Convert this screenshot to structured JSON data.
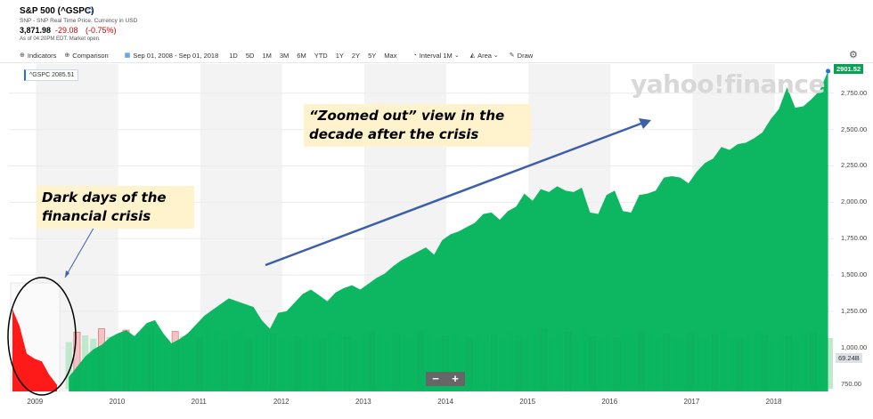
{
  "header": {
    "title": "S&P 500 (^GSPC)",
    "subtitle": "SNP - SNP Real Time Price. Currency in USD",
    "price": "3,871.98",
    "change": "-29.08",
    "change_pct": "(-0.75%)",
    "as_of": "As of 04:20PM EDT. Market open."
  },
  "toolbar": {
    "indicators": "Indicators",
    "comparison": "Comparison",
    "date_range": "Sep 01, 2008 - Sep 01, 2018",
    "ranges": [
      "1D",
      "5D",
      "1M",
      "3M",
      "6M",
      "YTD",
      "1Y",
      "2Y",
      "5Y",
      "Max"
    ],
    "interval": "Interval",
    "interval_value": "1M",
    "chart_type": "Area",
    "draw": "Draw"
  },
  "colors": {
    "area": "#00b35a",
    "crisis": "#ff1a1a",
    "arrow": "#3b5fa8",
    "note_bg": "#fff3cd",
    "neg_change": "#d60000"
  },
  "chart_data": {
    "type": "area",
    "x": [
      2009.4,
      2009.5,
      2009.6,
      2009.7,
      2009.8,
      2009.9,
      2010.0,
      2010.1,
      2010.2,
      2010.3,
      2010.35,
      2010.45,
      2010.55,
      2010.65,
      2010.75,
      2010.85,
      2010.95,
      2011.05,
      2011.15,
      2011.25,
      2011.35,
      2011.45,
      2011.55,
      2011.65,
      2011.75,
      2011.85,
      2011.95,
      2012.05,
      2012.15,
      2012.25,
      2012.35,
      2012.45,
      2012.55,
      2012.65,
      2012.75,
      2012.85,
      2012.95,
      2013.05,
      2013.15,
      2013.25,
      2013.35,
      2013.45,
      2013.55,
      2013.65,
      2013.75,
      2013.85,
      2013.95,
      2014.05,
      2014.15,
      2014.25,
      2014.35,
      2014.45,
      2014.55,
      2014.65,
      2014.75,
      2014.85,
      2014.95,
      2015.05,
      2015.15,
      2015.25,
      2015.35,
      2015.45,
      2015.55,
      2015.65,
      2015.75,
      2015.85,
      2015.95,
      2016.05,
      2016.15,
      2016.25,
      2016.35,
      2016.45,
      2016.55,
      2016.65,
      2016.75,
      2016.85,
      2016.95,
      2017.05,
      2017.15,
      2017.25,
      2017.35,
      2017.45,
      2017.55,
      2017.65,
      2017.75,
      2017.85,
      2017.95,
      2018.05,
      2018.15,
      2018.25,
      2018.35,
      2018.45,
      2018.55,
      2018.65
    ],
    "y": [
      800,
      870,
      940,
      990,
      1020,
      1070,
      1100,
      1120,
      1080,
      1140,
      1170,
      1190,
      1100,
      1030,
      1060,
      1100,
      1160,
      1220,
      1260,
      1300,
      1340,
      1320,
      1300,
      1280,
      1190,
      1130,
      1240,
      1250,
      1310,
      1370,
      1400,
      1360,
      1320,
      1380,
      1410,
      1430,
      1400,
      1440,
      1480,
      1510,
      1560,
      1600,
      1630,
      1660,
      1690,
      1640,
      1740,
      1780,
      1800,
      1830,
      1860,
      1920,
      1930,
      1880,
      1940,
      1970,
      2060,
      2010,
      2090,
      2070,
      2110,
      2080,
      2070,
      2100,
      1930,
      1920,
      2050,
      2080,
      1940,
      1930,
      2050,
      2060,
      2080,
      2170,
      2180,
      2170,
      2130,
      2210,
      2270,
      2300,
      2380,
      2360,
      2400,
      2410,
      2440,
      2480,
      2570,
      2640,
      2790,
      2650,
      2660,
      2710,
      2770,
      2901.52
    ],
    "crisis_inset": {
      "x": [
        2008.67,
        2008.75,
        2008.83,
        2008.92,
        2009.0,
        2009.08,
        2009.17
      ],
      "y": [
        1280,
        1150,
        940,
        900,
        880,
        780,
        700
      ]
    },
    "xlabel": "",
    "ylabel": "",
    "xlim": [
      2008.67,
      2018.72
    ],
    "ylim": [
      700,
      2950
    ],
    "x_ticks": [
      2009,
      2010,
      2011,
      2012,
      2013,
      2014,
      2015,
      2016,
      2017,
      2018
    ],
    "x_tick_labels": [
      "2009",
      "2010",
      "2011",
      "2012",
      "2013",
      "2014",
      "2015",
      "2016",
      "2017",
      "2018"
    ],
    "y_ticks": [
      750,
      1000,
      1250,
      1500,
      1750,
      2000,
      2250,
      2500,
      2750
    ],
    "y_tick_labels": [
      "750.00",
      "1,000.00",
      "1,250.00",
      "1,500.00",
      "1,750.00",
      "2,000.00",
      "2,250.00",
      "2,500.00",
      "2,750.00"
    ],
    "last_price": "2901.52",
    "last_volume": "69.24B",
    "legend_tag": "^GSPC 2085.51",
    "grid": true,
    "volume": [
      70,
      85,
      80,
      75,
      90,
      78,
      82,
      88,
      76,
      84,
      92,
      80,
      74,
      86,
      79,
      83,
      77,
      90,
      85,
      72,
      81,
      88,
      74,
      79,
      86,
      82,
      76,
      70,
      78,
      84,
      80,
      75,
      88,
      82,
      77,
      73,
      80,
      85,
      79,
      71,
      83,
      78,
      76,
      87,
      80,
      74,
      79,
      82,
      70,
      76,
      84,
      78,
      81,
      73,
      86,
      79,
      77,
      82,
      90,
      76,
      80,
      85,
      72,
      88,
      78,
      74,
      81,
      77,
      83,
      79,
      86,
      80,
      75,
      82,
      78,
      73,
      84,
      79,
      76,
      81,
      88,
      77,
      74,
      80,
      85,
      79,
      72,
      83,
      78,
      76,
      81,
      84,
      79,
      76
    ]
  },
  "annotations": {
    "note1": "Dark days of the financial crisis",
    "note2": "“Zoomed out” view in the decade after the crisis"
  },
  "watermark": "yahoo!finance",
  "zoom": {
    "minus": "−",
    "plus": "+"
  }
}
